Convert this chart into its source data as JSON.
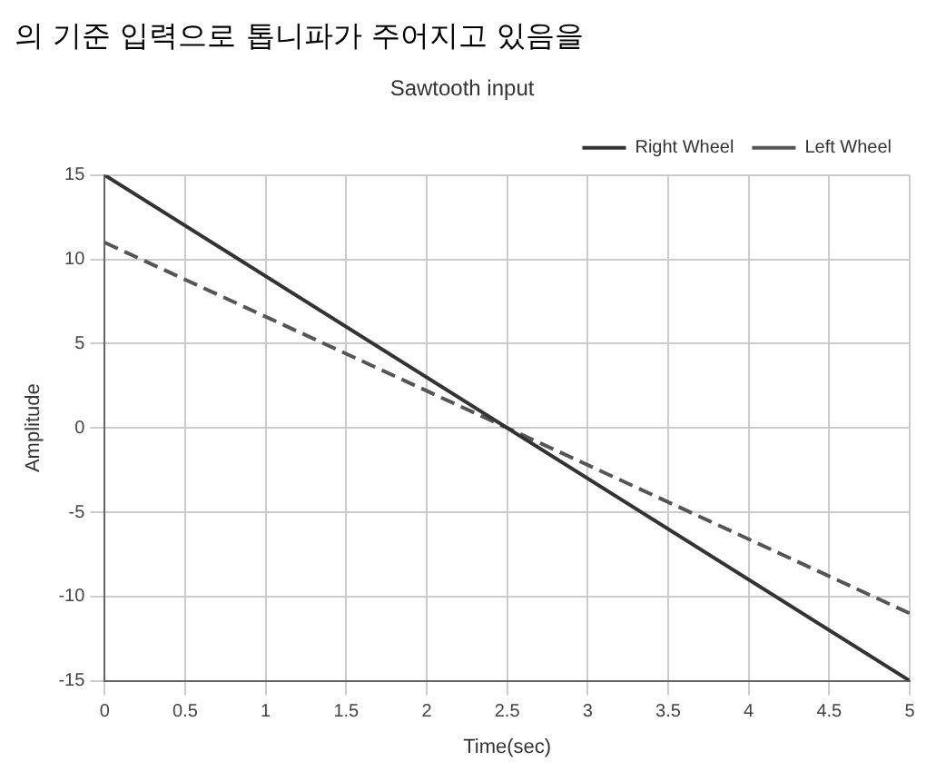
{
  "chart_data": {
    "type": "line",
    "title": "Sawtooth input",
    "xlabel": "Time(sec)",
    "ylabel": "Amplitude",
    "annotations": [
      "의 기준 입력으로 톱니파가 주어지고 있음을"
    ],
    "x": [
      0,
      5
    ],
    "series": [
      {
        "name": "Right Wheel",
        "color": "#333333",
        "values": [
          15,
          -15
        ],
        "line_style": "solid"
      },
      {
        "name": "Left Wheel",
        "color": "#555555",
        "values": [
          11,
          -11
        ],
        "line_style": "dashed"
      }
    ],
    "xlim": [
      0,
      5
    ],
    "xticks": [
      0,
      0.5,
      1,
      1.5,
      2,
      2.5,
      3,
      3.5,
      4,
      4.5,
      5
    ],
    "ylim": [
      -15,
      15
    ],
    "yticks": [
      -15,
      -10,
      -5,
      0,
      5,
      10,
      15
    ],
    "grid": true,
    "legend": "top right",
    "marker": "none"
  }
}
